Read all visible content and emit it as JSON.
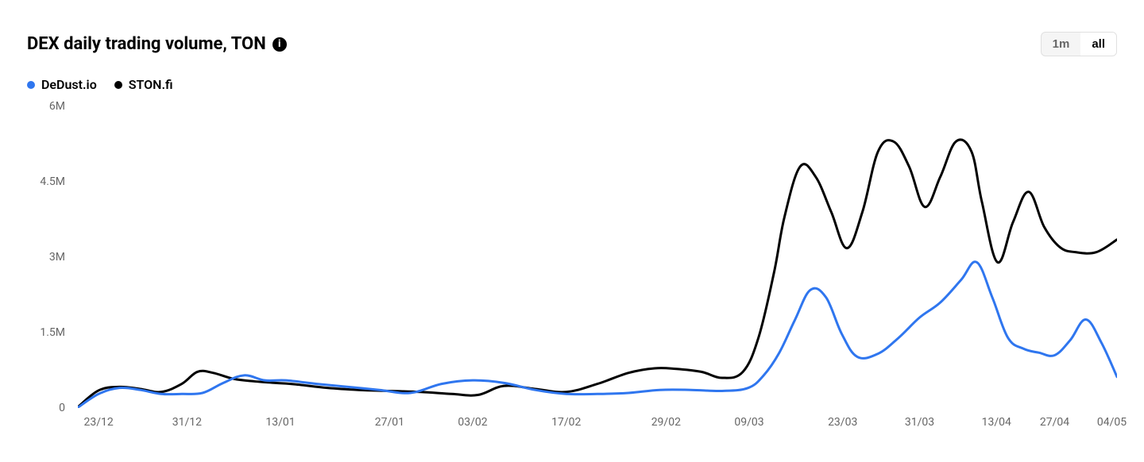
{
  "header": {
    "title": "DEX daily trading volume, TON",
    "info_icon_glyph": "i"
  },
  "range_toggle": {
    "options": [
      "1m",
      "all"
    ],
    "active_index": 1
  },
  "legend": [
    {
      "label": "DeDust.io",
      "color": "#2f76ef"
    },
    {
      "label": "STON.fi",
      "color": "#000000"
    }
  ],
  "chart": {
    "type": "line",
    "background_color": "#ffffff",
    "line_width": 3,
    "y_axis": {
      "min": 0,
      "max": 6000000,
      "ticks": [
        {
          "value": 0,
          "label": "0"
        },
        {
          "value": 1500000,
          "label": "1.5M"
        },
        {
          "value": 3000000,
          "label": "3M"
        },
        {
          "value": 4500000,
          "label": "4.5M"
        },
        {
          "value": 6000000,
          "label": "6M"
        }
      ],
      "tick_color": "#666666",
      "tick_fontsize": 14
    },
    "x_axis": {
      "labels": [
        "23/12",
        "31/12",
        "13/01",
        "27/01",
        "03/02",
        "17/02",
        "29/02",
        "09/03",
        "23/03",
        "31/03",
        "13/04",
        "27/04",
        "04/05"
      ],
      "positions": [
        0.02,
        0.105,
        0.195,
        0.3,
        0.38,
        0.47,
        0.566,
        0.646,
        0.736,
        0.81,
        0.884,
        0.94,
        0.995
      ],
      "tick_color": "#666666",
      "tick_fontsize": 14
    },
    "series": [
      {
        "name": "STON.fi",
        "color": "#000000",
        "x": [
          0.0,
          0.02,
          0.04,
          0.06,
          0.08,
          0.1,
          0.115,
          0.13,
          0.15,
          0.17,
          0.19,
          0.21,
          0.24,
          0.27,
          0.3,
          0.33,
          0.36,
          0.385,
          0.41,
          0.44,
          0.47,
          0.5,
          0.53,
          0.555,
          0.575,
          0.6,
          0.62,
          0.64,
          0.655,
          0.67,
          0.68,
          0.695,
          0.71,
          0.725,
          0.74,
          0.755,
          0.77,
          0.785,
          0.8,
          0.815,
          0.83,
          0.845,
          0.86,
          0.87,
          0.885,
          0.9,
          0.915,
          0.93,
          0.945,
          0.96,
          0.98,
          1.0
        ],
        "y": [
          0.02,
          0.35,
          0.42,
          0.38,
          0.32,
          0.48,
          0.72,
          0.7,
          0.58,
          0.53,
          0.5,
          0.47,
          0.4,
          0.36,
          0.34,
          0.32,
          0.28,
          0.26,
          0.44,
          0.38,
          0.32,
          0.48,
          0.7,
          0.79,
          0.78,
          0.72,
          0.6,
          0.72,
          1.4,
          2.7,
          3.8,
          4.8,
          4.6,
          3.9,
          3.18,
          3.9,
          5.1,
          5.3,
          4.8,
          4.0,
          4.6,
          5.3,
          5.1,
          4.1,
          2.9,
          3.7,
          4.3,
          3.6,
          3.2,
          3.1,
          3.1,
          3.35
        ],
        "y_scale": 1000000
      },
      {
        "name": "DeDust.io",
        "color": "#2f76ef",
        "x": [
          0.0,
          0.02,
          0.04,
          0.06,
          0.08,
          0.1,
          0.12,
          0.14,
          0.16,
          0.18,
          0.2,
          0.23,
          0.26,
          0.29,
          0.32,
          0.35,
          0.38,
          0.41,
          0.44,
          0.47,
          0.5,
          0.53,
          0.56,
          0.59,
          0.62,
          0.645,
          0.66,
          0.675,
          0.69,
          0.705,
          0.72,
          0.735,
          0.75,
          0.77,
          0.79,
          0.81,
          0.83,
          0.85,
          0.865,
          0.88,
          0.895,
          0.91,
          0.925,
          0.94,
          0.955,
          0.97,
          0.985,
          1.0
        ],
        "y": [
          0.01,
          0.28,
          0.4,
          0.36,
          0.28,
          0.28,
          0.3,
          0.5,
          0.65,
          0.55,
          0.55,
          0.48,
          0.42,
          0.36,
          0.3,
          0.48,
          0.55,
          0.5,
          0.36,
          0.28,
          0.28,
          0.3,
          0.36,
          0.36,
          0.34,
          0.4,
          0.65,
          1.1,
          1.75,
          2.35,
          2.2,
          1.48,
          1.02,
          1.08,
          1.4,
          1.8,
          2.1,
          2.55,
          2.9,
          2.2,
          1.4,
          1.18,
          1.1,
          1.05,
          1.35,
          1.76,
          1.3,
          0.62
        ],
        "y_scale": 1000000
      }
    ]
  }
}
